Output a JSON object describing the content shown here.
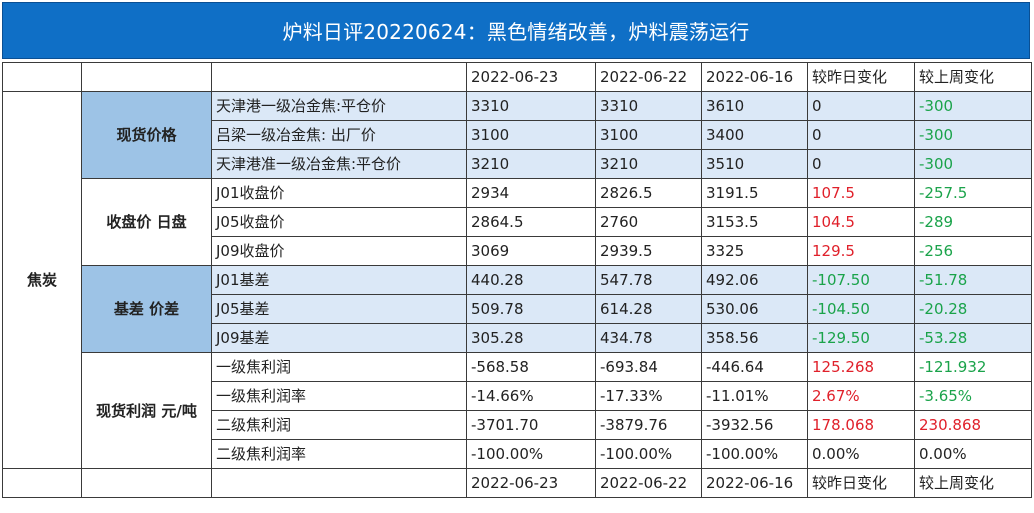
{
  "title": "炉料日评20220624：黑色情绪改善，炉料震荡运行",
  "header": {
    "d1": "2022-06-23",
    "d2": "2022-06-22",
    "d3": "2022-06-16",
    "chg_day": "较昨日变化",
    "chg_week": "较上周变化"
  },
  "category": "焦炭",
  "groups": [
    {
      "label": "现货价格",
      "rows": [
        {
          "name": "天津港一级冶金焦:平仓价",
          "v1": "3310",
          "v2": "3310",
          "v3": "3610",
          "day": "0",
          "week": "-300"
        },
        {
          "name": "吕梁一级冶金焦: 出厂价",
          "v1": "3100",
          "v2": "3100",
          "v3": "3400",
          "day": "0",
          "week": "-300"
        },
        {
          "name": "天津港准一级冶金焦:平仓价",
          "v1": "3210",
          "v2": "3210",
          "v3": "3510",
          "day": "0",
          "week": "-300"
        }
      ]
    },
    {
      "label": "收盘价 日盘",
      "rows": [
        {
          "name": "J01收盘价",
          "v1": "2934",
          "v2": "2826.5",
          "v3": "3191.5",
          "day": "107.5",
          "week": "-257.5"
        },
        {
          "name": "J05收盘价",
          "v1": "2864.5",
          "v2": "2760",
          "v3": "3153.5",
          "day": "104.5",
          "week": "-289"
        },
        {
          "name": "J09收盘价",
          "v1": "3069",
          "v2": "2939.5",
          "v3": "3325",
          "day": "129.5",
          "week": "-256"
        }
      ]
    },
    {
      "label": "基差 价差",
      "rows": [
        {
          "name": "J01基差",
          "v1": "440.28",
          "v2": "547.78",
          "v3": "492.06",
          "day": "-107.50",
          "week": "-51.78"
        },
        {
          "name": "J05基差",
          "v1": "509.78",
          "v2": "614.28",
          "v3": "530.06",
          "day": "-104.50",
          "week": "-20.28"
        },
        {
          "name": "J09基差",
          "v1": "305.28",
          "v2": "434.78",
          "v3": "358.56",
          "day": "-129.50",
          "week": "-53.28"
        }
      ]
    },
    {
      "label": "现货利润 元/吨",
      "rows": [
        {
          "name": "一级焦利润",
          "v1": "-568.58",
          "v2": "-693.84",
          "v3": "-446.64",
          "day": "125.268",
          "week": "-121.932"
        },
        {
          "name": "一级焦利润率",
          "v1": "-14.66%",
          "v2": "-17.33%",
          "v3": "-11.01%",
          "day": "2.67%",
          "week": "-3.65%"
        },
        {
          "name": "二级焦利润",
          "v1": "-3701.70",
          "v2": "-3879.76",
          "v3": "-3932.56",
          "day": "178.068",
          "week": "230.868"
        },
        {
          "name": "二级焦利润率",
          "v1": "-100.00%",
          "v2": "-100.00%",
          "v3": "-100.00%",
          "day": "0.00%",
          "week": "0.00%"
        }
      ]
    }
  ],
  "colors": {
    "title_bg": "#0f6fc6",
    "blue_label": "#9dc3e6",
    "blue_cell": "#dbe8f7",
    "up": "#e0202a",
    "down": "#1aa34a"
  }
}
